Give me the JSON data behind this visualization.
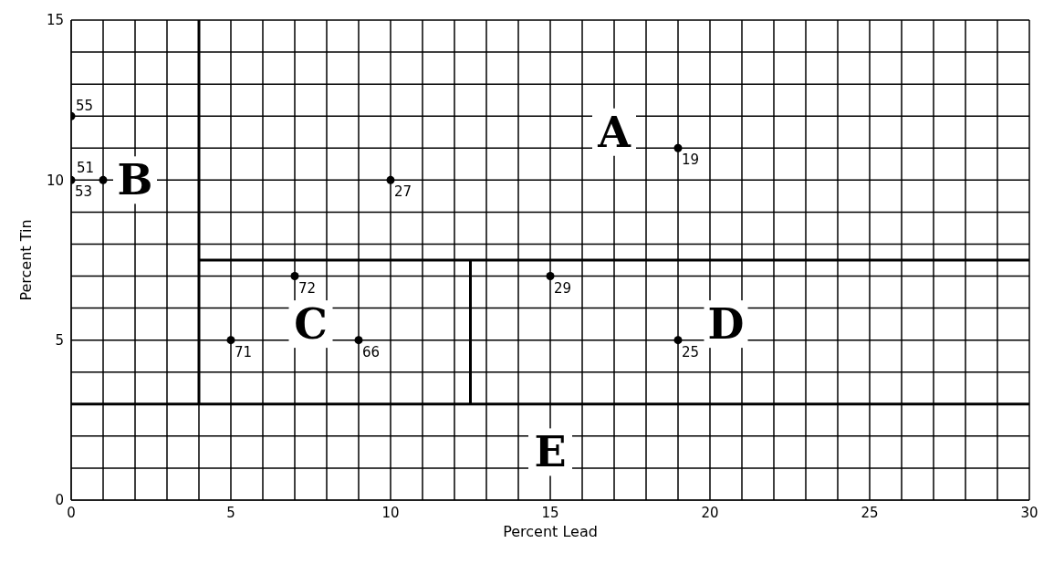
{
  "chart_data": {
    "type": "scatter",
    "xlabel": "Percent Lead",
    "ylabel": "Percent Tin",
    "xlim": [
      0,
      30
    ],
    "ylim": [
      0,
      15
    ],
    "xticks": [
      0,
      {
        "value": 1,
        "label": null
      },
      {
        "value": 2,
        "label": null
      },
      {
        "value": 3,
        "label": null
      },
      {
        "value": 4,
        "label": null
      },
      5,
      {
        "value": 6,
        "label": null
      },
      {
        "value": 7,
        "label": null
      },
      {
        "value": 8,
        "label": null
      },
      {
        "value": 9,
        "label": null
      },
      10,
      {
        "value": 11,
        "label": null
      },
      {
        "value": 12,
        "label": null
      },
      {
        "value": 13,
        "label": null
      },
      {
        "value": 14,
        "label": null
      },
      15,
      {
        "value": 16,
        "label": null
      },
      {
        "value": 17,
        "label": null
      },
      {
        "value": 18,
        "label": null
      },
      {
        "value": 19,
        "label": null
      },
      20,
      {
        "value": 21,
        "label": null
      },
      {
        "value": 22,
        "label": null
      },
      {
        "value": 23,
        "label": null
      },
      {
        "value": 24,
        "label": null
      },
      25,
      {
        "value": 26,
        "label": null
      },
      {
        "value": 27,
        "label": null
      },
      {
        "value": 28,
        "label": null
      },
      {
        "value": 29,
        "label": null
      },
      30
    ],
    "yticks": [
      0,
      {
        "value": 1,
        "label": null
      },
      {
        "value": 2,
        "label": null
      },
      {
        "value": 3,
        "label": null
      },
      {
        "value": 4,
        "label": null
      },
      5,
      {
        "value": 6,
        "label": null
      },
      {
        "value": 7,
        "label": null
      },
      {
        "value": 8,
        "label": null
      },
      {
        "value": 9,
        "label": null
      },
      10,
      {
        "value": 11,
        "label": null
      },
      {
        "value": 12,
        "label": null
      },
      {
        "value": 13,
        "label": null
      },
      {
        "value": 14,
        "label": null
      },
      15
    ],
    "grid": true,
    "line_style": "solid",
    "series": [
      {
        "color": "#000000",
        "marker": "circle",
        "x": [
          0,
          0,
          1,
          10,
          19,
          7,
          5,
          9,
          15,
          19
        ],
        "values": [
          12,
          10,
          10,
          10,
          11,
          7,
          5,
          5,
          7,
          5
        ]
      },
      {
        "type": "line",
        "color": "#000000",
        "marker": "none",
        "x": [
          4,
          4
        ],
        "values": [
          3,
          15
        ]
      },
      {
        "type": "line",
        "color": "#000000",
        "marker": "none",
        "x": [
          4,
          30
        ],
        "values": [
          7.5,
          7.5
        ]
      },
      {
        "type": "line",
        "color": "#000000",
        "marker": "none",
        "x": [
          12.5,
          12.5
        ],
        "values": [
          3,
          7.5
        ]
      }
    ],
    "ref_lines": [
      {
        "axis": "y",
        "value": 3,
        "color": "#000000",
        "line_style": "solid"
      }
    ],
    "annotations": [
      {
        "text": "55",
        "x": 0,
        "y": 12
      },
      {
        "text": "53",
        "x": 0,
        "y": 10
      },
      {
        "text": "51",
        "x": 1,
        "y": 10
      },
      {
        "text": "27",
        "x": 10,
        "y": 10
      },
      {
        "text": "19",
        "x": 19,
        "y": 11
      },
      {
        "text": "72",
        "x": 7,
        "y": 7
      },
      {
        "text": "71",
        "x": 5,
        "y": 5
      },
      {
        "text": "66",
        "x": 9,
        "y": 5
      },
      {
        "text": "29",
        "x": 15,
        "y": 7
      },
      {
        "text": "25",
        "x": 19,
        "y": 5
      },
      "A",
      "B",
      "C",
      "D",
      "E"
    ]
  }
}
